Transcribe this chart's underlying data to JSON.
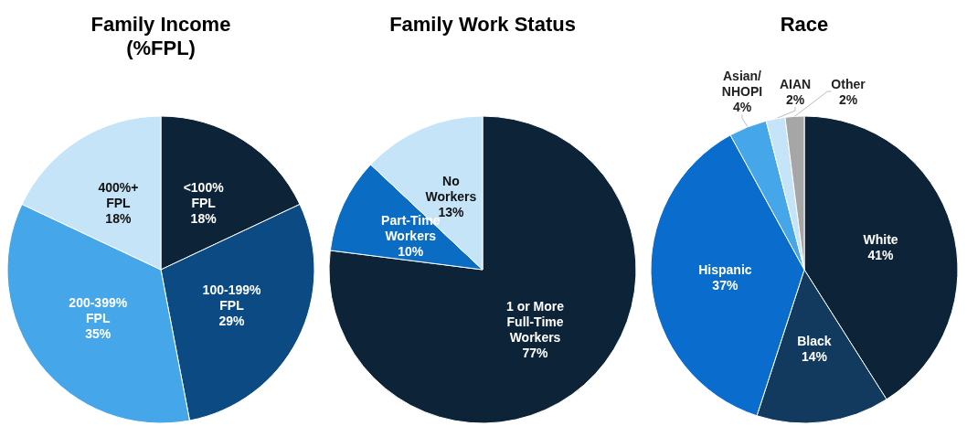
{
  "chart_data": [
    {
      "type": "pie",
      "title": "Family Income\n(%FPL)",
      "categories": [
        "<100%\nFPL",
        "100-199%\nFPL",
        "200-399%\nFPL",
        "400%+\nFPL"
      ],
      "values": [
        18,
        29,
        35,
        18
      ],
      "value_labels": [
        "18%",
        "29%",
        "35%",
        "18%"
      ],
      "colors": [
        "#0d2338",
        "#0b4a82",
        "#45a6ea",
        "#c5e4f8"
      ]
    },
    {
      "type": "pie",
      "title": "Family Work Status",
      "categories": [
        "1 or More\nFull-Time\nWorkers",
        "Part-Time\nWorkers",
        "No\nWorkers"
      ],
      "values": [
        77,
        10,
        13
      ],
      "value_labels": [
        "77%",
        "10%",
        "13%"
      ],
      "colors": [
        "#0d2338",
        "#0b6cc4",
        "#c5e4f8"
      ]
    },
    {
      "type": "pie",
      "title": "Race",
      "categories": [
        "White",
        "Black",
        "Hispanic",
        "Asian/\nNHOPI",
        "AIAN",
        "Other"
      ],
      "values": [
        41,
        14,
        37,
        4,
        2,
        2
      ],
      "value_labels": [
        "41%",
        "14%",
        "37%",
        "4%",
        "2%",
        "2%"
      ],
      "colors": [
        "#0d2338",
        "#123a5e",
        "#0a6ccc",
        "#45a6ea",
        "#c5e4f8",
        "#a6a6a6"
      ]
    }
  ]
}
